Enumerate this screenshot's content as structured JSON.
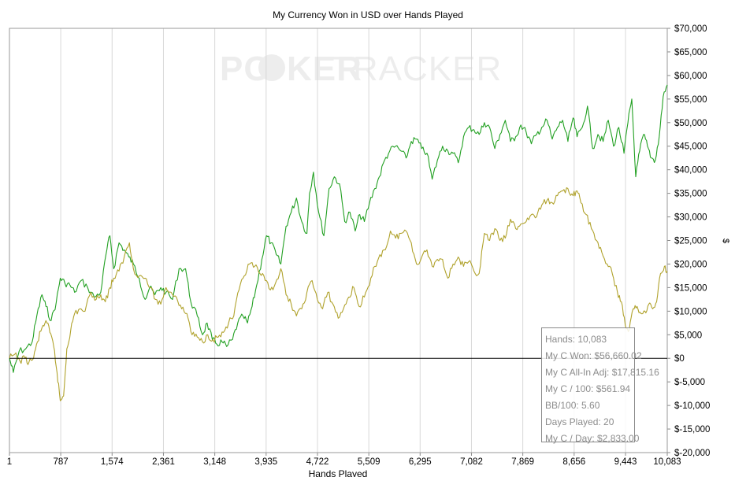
{
  "chart_data": {
    "type": "line",
    "title": "My Currency Won in USD over Hands Played",
    "xlabel": "Hands Played",
    "ylabel": "$",
    "watermark": [
      "PO",
      "KER",
      "TRACKER"
    ],
    "xlim": [
      1,
      10083
    ],
    "ylim": [
      -20000,
      70000
    ],
    "x_ticks": [
      "1",
      "787",
      "1,574",
      "2,361",
      "3,148",
      "3,935",
      "4,722",
      "5,509",
      "6,295",
      "7,082",
      "7,869",
      "8,656",
      "9,443",
      "10,083"
    ],
    "x_tick_values": [
      1,
      787,
      1574,
      2361,
      3148,
      3935,
      4722,
      5509,
      6295,
      7082,
      7869,
      8656,
      9443,
      10083
    ],
    "y_ticks": [
      "$70,000",
      "$65,000",
      "$60,000",
      "$55,000",
      "$50,000",
      "$45,000",
      "$40,000",
      "$35,000",
      "$30,000",
      "$25,000",
      "$20,000",
      "$15,000",
      "$10,000",
      "$5,000",
      "$0",
      "$-5,000",
      "$-10,000",
      "$-15,000",
      "$-20,000"
    ],
    "y_tick_values": [
      70000,
      65000,
      60000,
      55000,
      50000,
      45000,
      40000,
      35000,
      30000,
      25000,
      20000,
      15000,
      10000,
      5000,
      0,
      -5000,
      -10000,
      -15000,
      -20000
    ],
    "grid": "vertical",
    "series": [
      {
        "color": "#22a022",
        "x": [
          1,
          60,
          150,
          250,
          350,
          420,
          500,
          560,
          640,
          720,
          780,
          850,
          930,
          1000,
          1100,
          1200,
          1300,
          1400,
          1480,
          1540,
          1600,
          1680,
          1760,
          1830,
          1900,
          1990,
          2080,
          2150,
          2230,
          2320,
          2400,
          2500,
          2600,
          2700,
          2780,
          2880,
          2960,
          3030,
          3110,
          3180,
          3260,
          3330,
          3420,
          3500,
          3580,
          3650,
          3720,
          3790,
          3870,
          3940,
          4010,
          4090,
          4160,
          4240,
          4320,
          4400,
          4480,
          4560,
          4600,
          4660,
          4740,
          4820,
          4900,
          4980,
          5060,
          5140,
          5220,
          5300,
          5370,
          5440,
          5520,
          5600,
          5670,
          5750,
          5830,
          5920,
          6000,
          6080,
          6160,
          6240,
          6320,
          6400,
          6480,
          6560,
          6640,
          6720,
          6800,
          6880,
          6960,
          7040,
          7120,
          7200,
          7280,
          7360,
          7440,
          7520,
          7600,
          7680,
          7760,
          7840,
          7920,
          8000,
          8080,
          8160,
          8240,
          8320,
          8400,
          8480,
          8560,
          8640,
          8700,
          8780,
          8860,
          8940,
          9020,
          9100,
          9180,
          9260,
          9340,
          9420,
          9480,
          9540,
          9600,
          9660,
          9720,
          9780,
          9840,
          9900,
          9960,
          10020,
          10083
        ],
        "values": [
          0,
          -3000,
          1500,
          2000,
          3500,
          9000,
          13500,
          11000,
          8000,
          12000,
          17000,
          16000,
          15500,
          14000,
          16500,
          15000,
          13000,
          14000,
          22000,
          26000,
          19000,
          24500,
          23000,
          21500,
          20000,
          17000,
          12500,
          15000,
          13500,
          15000,
          14000,
          12500,
          19000,
          19000,
          12000,
          9000,
          5000,
          7500,
          4000,
          3000,
          3500,
          2500,
          4000,
          7500,
          9000,
          7500,
          11000,
          15500,
          21000,
          26000,
          24500,
          22000,
          20000,
          28000,
          31000,
          34000,
          29000,
          26500,
          35000,
          39500,
          31000,
          26000,
          36000,
          38500,
          37000,
          29000,
          31000,
          27000,
          30500,
          29000,
          33000,
          36000,
          38500,
          42000,
          44000,
          45000,
          44000,
          42500,
          46000,
          46500,
          44500,
          43500,
          38000,
          42000,
          45000,
          44000,
          43500,
          41500,
          47000,
          49000,
          48500,
          47500,
          50000,
          49000,
          44500,
          47500,
          50500,
          46000,
          47000,
          49500,
          48000,
          45500,
          47500,
          49000,
          50500,
          46500,
          49000,
          50500,
          46000,
          51000,
          47000,
          49000,
          53500,
          44500,
          47500,
          46000,
          50500,
          45000,
          49000,
          43500,
          50000,
          55000,
          38500,
          44000,
          47500,
          45000,
          42500,
          42000,
          47000,
          55500,
          58000
        ]
      },
      {
        "color": "#b0a22c",
        "x": [
          1,
          80,
          160,
          240,
          300,
          370,
          430,
          500,
          560,
          620,
          680,
          730,
          780,
          830,
          880,
          940,
          1000,
          1080,
          1160,
          1250,
          1330,
          1400,
          1470,
          1540,
          1600,
          1680,
          1760,
          1840,
          1900,
          1990,
          2080,
          2160,
          2240,
          2320,
          2400,
          2480,
          2560,
          2640,
          2720,
          2800,
          2880,
          2960,
          3040,
          3120,
          3200,
          3280,
          3360,
          3440,
          3520,
          3600,
          3680,
          3760,
          3840,
          3920,
          4000,
          4080,
          4160,
          4240,
          4320,
          4400,
          4480,
          4560,
          4640,
          4720,
          4800,
          4880,
          4960,
          5040,
          5120,
          5200,
          5280,
          5360,
          5440,
          5520,
          5600,
          5680,
          5760,
          5840,
          5920,
          6000,
          6080,
          6160,
          6240,
          6320,
          6400,
          6480,
          6560,
          6640,
          6720,
          6800,
          6880,
          6960,
          7040,
          7120,
          7200,
          7280,
          7360,
          7440,
          7520,
          7600,
          7680,
          7760,
          7840,
          7920,
          8000,
          8080,
          8160,
          8240,
          8320,
          8400,
          8480,
          8560,
          8640,
          8700,
          8760,
          8840,
          8920,
          9000,
          9080,
          9160,
          9240,
          9320,
          9380,
          9440,
          9500,
          9560,
          9620,
          9680,
          9740,
          9800,
          9860,
          9920,
          9980,
          10040,
          10083
        ],
        "values": [
          0,
          800,
          -500,
          0,
          -800,
          0,
          3500,
          6500,
          8000,
          5500,
          2500,
          -3000,
          -9000,
          -8000,
          2000,
          6000,
          9500,
          10500,
          10000,
          14000,
          12500,
          13500,
          12000,
          15000,
          17000,
          18500,
          21500,
          24500,
          19000,
          17500,
          17000,
          15000,
          12500,
          11500,
          15000,
          14000,
          13000,
          10500,
          9500,
          5000,
          4500,
          3500,
          5000,
          4000,
          4500,
          5500,
          7500,
          9000,
          14500,
          17500,
          20000,
          19500,
          18000,
          16500,
          14500,
          16000,
          19000,
          13500,
          11500,
          9000,
          10500,
          14000,
          16500,
          12500,
          10500,
          14000,
          11500,
          8500,
          10500,
          13000,
          15000,
          11000,
          13000,
          15500,
          19500,
          22000,
          23000,
          27000,
          25500,
          26500,
          27000,
          24500,
          20000,
          21500,
          23000,
          19500,
          21000,
          21000,
          17000,
          20000,
          21500,
          19500,
          20500,
          18500,
          18000,
          26500,
          25000,
          27500,
          25000,
          25500,
          29500,
          27500,
          28500,
          29000,
          30500,
          30000,
          32500,
          33500,
          33000,
          34500,
          35500,
          36000,
          34500,
          35500,
          33000,
          30500,
          27500,
          25000,
          22500,
          20000,
          18000,
          14000,
          12000,
          7000,
          6000,
          10500,
          11000,
          9500,
          10000,
          11500,
          10500,
          12000,
          18000,
          19500,
          18500
        ]
      }
    ]
  },
  "stats": {
    "hands": "Hands: 10,083",
    "won": "My C Won: $56,660.02",
    "allin": "My C All-In Adj: $17,815.16",
    "per100": "My C / 100: $561.94",
    "bb100": "BB/100: 5.60",
    "days": "Days Played: 20",
    "perday": "My C / Day: $2,833.00"
  }
}
